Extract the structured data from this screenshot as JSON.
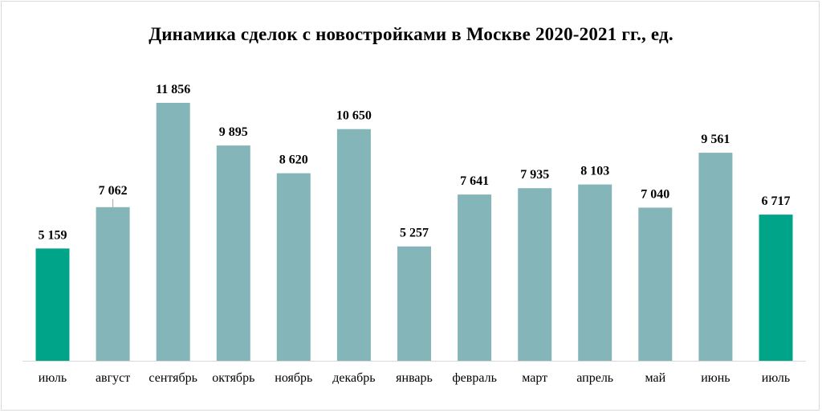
{
  "chart_data": {
    "type": "bar",
    "title": "Динамика сделок с новостройками в Москве 2020-2021 гг., ед.",
    "categories": [
      "июль",
      "август",
      "сентябрь",
      "октябрь",
      "ноябрь",
      "декабрь",
      "январь",
      "февраль",
      "март",
      "апрель",
      "май",
      "июнь",
      "июль"
    ],
    "values": [
      5159,
      7062,
      11856,
      9895,
      8620,
      10650,
      5257,
      7641,
      7935,
      8103,
      7040,
      9561,
      6717
    ],
    "value_labels": [
      "5 159",
      "7 062",
      "11 856",
      "9 895",
      "8 620",
      "10 650",
      "5 257",
      "7 641",
      "7 935",
      "8 103",
      "7 040",
      "9 561",
      "6 717"
    ],
    "highlighted_indices": [
      0,
      12
    ],
    "ylim": [
      0,
      12000
    ],
    "grid": false,
    "legend": "none",
    "colors": {
      "bar": "#84b5b9",
      "highlight": "#00a489",
      "axis": "#d9d9d9"
    }
  }
}
